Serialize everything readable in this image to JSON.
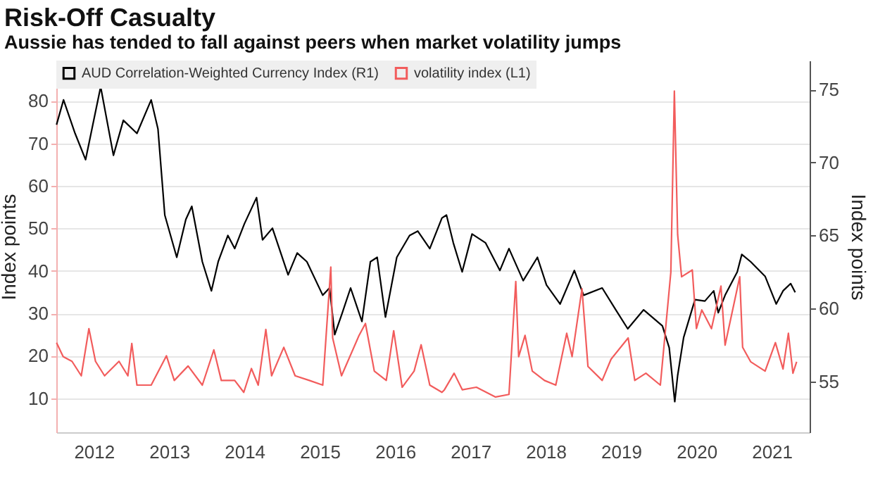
{
  "chart_data": {
    "type": "line",
    "title": "Risk-Off Casualty",
    "subtitle": "Aussie has tended to fall against peers when market volatility jumps",
    "ylabel": "Index points",
    "y2label": "Index points",
    "xlim": [
      "2012-01-01",
      "2022-01-01"
    ],
    "xticks": [
      {
        "value": "2012-07-01",
        "label": "2012"
      },
      {
        "value": "2013-07-01",
        "label": "2013"
      },
      {
        "value": "2014-07-01",
        "label": "2014"
      },
      {
        "value": "2015-07-01",
        "label": "2015"
      },
      {
        "value": "2016-07-01",
        "label": "2016"
      },
      {
        "value": "2017-07-01",
        "label": "2017"
      },
      {
        "value": "2018-07-01",
        "label": "2018"
      },
      {
        "value": "2019-07-01",
        "label": "2019"
      },
      {
        "value": "2020-07-01",
        "label": "2020"
      },
      {
        "value": "2021-07-01",
        "label": "2021"
      }
    ],
    "ylim": [
      2,
      89.5
    ],
    "yticks": [
      10,
      20,
      30,
      40,
      50,
      60,
      70,
      80
    ],
    "y2lim": [
      51.5,
      77
    ],
    "y2ticks": [
      55,
      60,
      65,
      70,
      75
    ],
    "grid": "y",
    "legend": "top left",
    "line_style": "solid",
    "marker": "none",
    "series": [
      {
        "name": "AUD Correlation-Weighted Currency Index (R1)",
        "color": "#000000",
        "axis": "y2",
        "x": [
          "2012-01-02",
          "2012-02-05",
          "2012-04-01",
          "2012-05-22",
          "2012-08-03",
          "2012-10-04",
          "2012-11-21",
          "2013-01-26",
          "2013-04-05",
          "2013-05-08",
          "2013-06-10",
          "2013-08-07",
          "2013-09-20",
          "2013-10-19",
          "2013-12-09",
          "2014-01-22",
          "2014-02-24",
          "2014-04-12",
          "2014-05-15",
          "2014-07-01",
          "2014-08-29",
          "2014-09-27",
          "2014-11-14",
          "2015-01-29",
          "2015-03-14",
          "2015-04-30",
          "2015-07-16",
          "2015-08-18",
          "2015-09-12",
          "2015-10-19",
          "2015-11-28",
          "2016-01-22",
          "2016-03-03",
          "2016-04-05",
          "2016-05-15",
          "2016-07-09",
          "2016-09-09",
          "2016-10-19",
          "2016-12-16",
          "2017-02-13",
          "2017-03-07",
          "2017-04-09",
          "2017-05-22",
          "2017-07-09",
          "2017-09-12",
          "2017-11-21",
          "2018-01-04",
          "2018-03-14",
          "2018-05-22",
          "2018-07-05",
          "2018-09-09",
          "2018-11-17",
          "2019-01-01",
          "2019-04-01",
          "2019-06-06",
          "2019-08-03",
          "2019-10-19",
          "2020-01-18",
          "2020-02-20",
          "2020-03-18",
          "2020-04-01",
          "2020-04-30",
          "2020-06-24",
          "2020-08-11",
          "2020-09-23",
          "2020-10-15",
          "2020-11-17",
          "2021-01-15",
          "2021-02-06",
          "2021-03-21",
          "2021-05-30",
          "2021-07-23",
          "2021-08-25",
          "2021-10-01",
          "2021-10-23"
        ],
        "values": [
          72.6,
          74.3,
          72.0,
          70.2,
          75.2,
          70.5,
          72.9,
          72.0,
          74.3,
          72.3,
          66.4,
          63.5,
          66.1,
          67.0,
          63.2,
          61.2,
          63.2,
          65.0,
          64.1,
          65.8,
          67.6,
          64.7,
          65.5,
          62.3,
          63.8,
          63.2,
          60.9,
          61.4,
          58.2,
          59.7,
          61.4,
          59.1,
          63.2,
          63.5,
          59.4,
          63.5,
          65.0,
          65.3,
          64.1,
          66.2,
          66.4,
          64.5,
          62.5,
          65.1,
          64.5,
          62.6,
          64.1,
          61.9,
          63.5,
          61.6,
          60.3,
          62.6,
          60.9,
          61.4,
          59.9,
          58.6,
          59.9,
          58.8,
          57.3,
          53.6,
          55.4,
          58.0,
          60.6,
          60.5,
          61.2,
          59.7,
          60.9,
          62.5,
          63.7,
          63.2,
          62.2,
          60.3,
          61.2,
          61.7,
          61.1
        ]
      },
      {
        "name": "volatility index (L1)",
        "color": "#f25c5c",
        "x": [
          "2012-01-02",
          "2012-02-03",
          "2012-03-17",
          "2012-05-01",
          "2012-06-07",
          "2012-07-09",
          "2012-08-22",
          "2012-10-31",
          "2012-12-13",
          "2013-01-01",
          "2013-01-26",
          "2013-04-05",
          "2013-06-18",
          "2013-07-26",
          "2013-10-01",
          "2013-12-09",
          "2014-02-03",
          "2014-03-11",
          "2014-05-15",
          "2014-06-28",
          "2014-08-04",
          "2014-09-06",
          "2014-10-13",
          "2014-11-10",
          "2015-01-08",
          "2015-03-04",
          "2015-05-12",
          "2015-07-16",
          "2015-08-24",
          "2015-09-02",
          "2015-10-15",
          "2016-01-08",
          "2016-02-08",
          "2016-03-22",
          "2016-05-19",
          "2016-06-24",
          "2016-08-04",
          "2016-10-01",
          "2016-11-04",
          "2016-12-16",
          "2017-02-13",
          "2017-02-25",
          "2017-04-13",
          "2017-05-23",
          "2017-07-30",
          "2017-10-31",
          "2018-01-04",
          "2018-02-06",
          "2018-02-20",
          "2018-03-23",
          "2018-04-27",
          "2018-06-25",
          "2018-08-19",
          "2018-10-11",
          "2018-11-06",
          "2018-12-24",
          "2019-01-22",
          "2019-04-01",
          "2019-05-14",
          "2019-08-05",
          "2019-09-06",
          "2019-10-30",
          "2020-01-08",
          "2020-02-28",
          "2020-03-16",
          "2020-04-01",
          "2020-04-20",
          "2020-06-11",
          "2020-07-01",
          "2020-07-27",
          "2020-09-12",
          "2020-10-28",
          "2020-11-17",
          "2021-01-27",
          "2021-02-10",
          "2021-03-21",
          "2021-05-30",
          "2021-07-19",
          "2021-08-25",
          "2021-09-20",
          "2021-10-12",
          "2021-10-30"
        ],
        "values": [
          23.1,
          19.8,
          18.7,
          15.3,
          26.4,
          18.7,
          15.3,
          18.7,
          15.3,
          22.9,
          13.1,
          13.1,
          20.0,
          14.2,
          17.6,
          13.1,
          21.4,
          14.2,
          14.2,
          11.4,
          17.0,
          13.1,
          26.2,
          15.3,
          22.0,
          15.3,
          14.2,
          13.1,
          40.9,
          24.2,
          15.3,
          24.8,
          27.6,
          16.4,
          14.2,
          25.9,
          12.6,
          16.4,
          22.6,
          13.1,
          11.4,
          12.0,
          15.9,
          12.0,
          12.6,
          10.3,
          10.9,
          37.5,
          19.8,
          24.8,
          16.4,
          14.2,
          13.1,
          25.3,
          19.8,
          35.8,
          17.5,
          14.2,
          19.2,
          24.2,
          14.2,
          15.9,
          13.1,
          39.7,
          82.3,
          48.5,
          38.6,
          40.2,
          26.4,
          30.8,
          26.4,
          36.4,
          22.5,
          38.6,
          22.0,
          18.6,
          16.4,
          23.1,
          16.9,
          25.3,
          15.9,
          18.6
        ]
      }
    ]
  }
}
